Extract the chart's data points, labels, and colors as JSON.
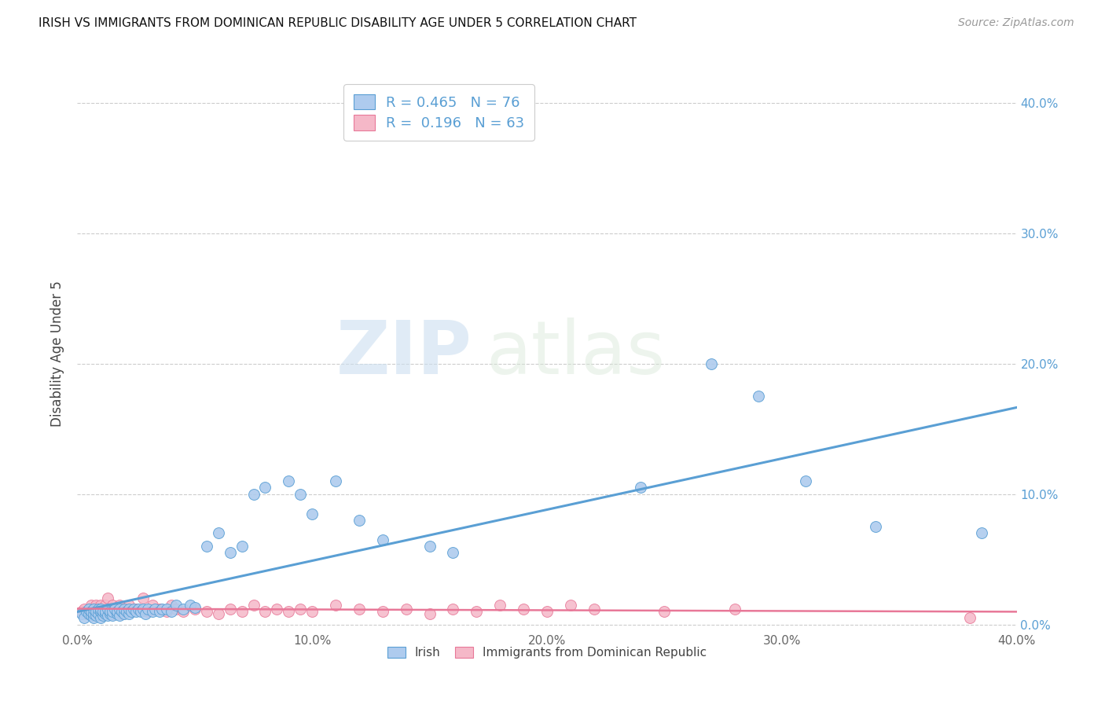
{
  "title": "IRISH VS IMMIGRANTS FROM DOMINICAN REPUBLIC DISABILITY AGE UNDER 5 CORRELATION CHART",
  "source": "Source: ZipAtlas.com",
  "xlabel_label": "Irish",
  "xlabel_label2": "Immigrants from Dominican Republic",
  "ylabel": "Disability Age Under 5",
  "xlim": [
    0.0,
    0.4
  ],
  "ylim": [
    -0.005,
    0.42
  ],
  "ytick_vals": [
    0.0,
    0.1,
    0.2,
    0.3,
    0.4
  ],
  "ytick_labels_right": [
    "0.0%",
    "10.0%",
    "20.0%",
    "30.0%",
    "40.0%"
  ],
  "xtick_vals": [
    0.0,
    0.1,
    0.2,
    0.3,
    0.4
  ],
  "xtick_labels": [
    "0.0%",
    "10.0%",
    "20.0%",
    "30.0%",
    "40.0%"
  ],
  "R_blue": 0.465,
  "N_blue": 76,
  "R_pink": 0.196,
  "N_pink": 63,
  "blue_color": "#aecbee",
  "pink_color": "#f5b8c8",
  "line_blue": "#5a9fd4",
  "line_pink": "#e87898",
  "right_tick_color": "#5a9fd4",
  "legend_text_color": "#5a9fd4",
  "watermark_zip": "ZIP",
  "watermark_atlas": "atlas",
  "blue_x": [
    0.002,
    0.003,
    0.004,
    0.005,
    0.005,
    0.006,
    0.006,
    0.007,
    0.007,
    0.007,
    0.008,
    0.008,
    0.009,
    0.009,
    0.01,
    0.01,
    0.01,
    0.011,
    0.011,
    0.012,
    0.012,
    0.013,
    0.013,
    0.014,
    0.014,
    0.015,
    0.015,
    0.016,
    0.017,
    0.017,
    0.018,
    0.018,
    0.019,
    0.02,
    0.02,
    0.021,
    0.022,
    0.022,
    0.023,
    0.024,
    0.025,
    0.026,
    0.027,
    0.028,
    0.029,
    0.03,
    0.032,
    0.033,
    0.035,
    0.036,
    0.038,
    0.04,
    0.042,
    0.045,
    0.048,
    0.05,
    0.055,
    0.06,
    0.065,
    0.07,
    0.075,
    0.08,
    0.09,
    0.095,
    0.1,
    0.11,
    0.12,
    0.13,
    0.15,
    0.16,
    0.24,
    0.27,
    0.29,
    0.31,
    0.34,
    0.385
  ],
  "blue_y": [
    0.008,
    0.005,
    0.01,
    0.008,
    0.012,
    0.007,
    0.01,
    0.005,
    0.008,
    0.012,
    0.007,
    0.01,
    0.008,
    0.012,
    0.005,
    0.01,
    0.012,
    0.007,
    0.01,
    0.008,
    0.01,
    0.007,
    0.012,
    0.008,
    0.01,
    0.007,
    0.01,
    0.012,
    0.008,
    0.01,
    0.007,
    0.012,
    0.01,
    0.008,
    0.012,
    0.01,
    0.008,
    0.012,
    0.01,
    0.012,
    0.01,
    0.012,
    0.01,
    0.012,
    0.008,
    0.012,
    0.01,
    0.012,
    0.01,
    0.012,
    0.012,
    0.01,
    0.015,
    0.012,
    0.015,
    0.013,
    0.06,
    0.07,
    0.055,
    0.06,
    0.1,
    0.105,
    0.11,
    0.1,
    0.085,
    0.11,
    0.08,
    0.065,
    0.06,
    0.055,
    0.105,
    0.2,
    0.175,
    0.11,
    0.075,
    0.07
  ],
  "pink_x": [
    0.002,
    0.003,
    0.004,
    0.005,
    0.006,
    0.006,
    0.007,
    0.007,
    0.008,
    0.008,
    0.009,
    0.009,
    0.01,
    0.01,
    0.011,
    0.012,
    0.012,
    0.013,
    0.014,
    0.015,
    0.015,
    0.016,
    0.017,
    0.018,
    0.019,
    0.02,
    0.021,
    0.022,
    0.025,
    0.028,
    0.03,
    0.032,
    0.035,
    0.038,
    0.04,
    0.042,
    0.045,
    0.05,
    0.055,
    0.06,
    0.065,
    0.07,
    0.075,
    0.08,
    0.085,
    0.09,
    0.095,
    0.1,
    0.11,
    0.12,
    0.13,
    0.14,
    0.15,
    0.16,
    0.17,
    0.18,
    0.19,
    0.2,
    0.21,
    0.22,
    0.25,
    0.28,
    0.38
  ],
  "pink_y": [
    0.01,
    0.012,
    0.008,
    0.01,
    0.012,
    0.015,
    0.008,
    0.012,
    0.01,
    0.015,
    0.008,
    0.012,
    0.01,
    0.015,
    0.008,
    0.012,
    0.015,
    0.02,
    0.01,
    0.008,
    0.015,
    0.012,
    0.01,
    0.015,
    0.008,
    0.012,
    0.01,
    0.015,
    0.012,
    0.02,
    0.01,
    0.015,
    0.012,
    0.01,
    0.015,
    0.012,
    0.01,
    0.012,
    0.01,
    0.008,
    0.012,
    0.01,
    0.015,
    0.01,
    0.012,
    0.01,
    0.012,
    0.01,
    0.015,
    0.012,
    0.01,
    0.012,
    0.008,
    0.012,
    0.01,
    0.015,
    0.012,
    0.01,
    0.015,
    0.012,
    0.01,
    0.012,
    0.005
  ]
}
